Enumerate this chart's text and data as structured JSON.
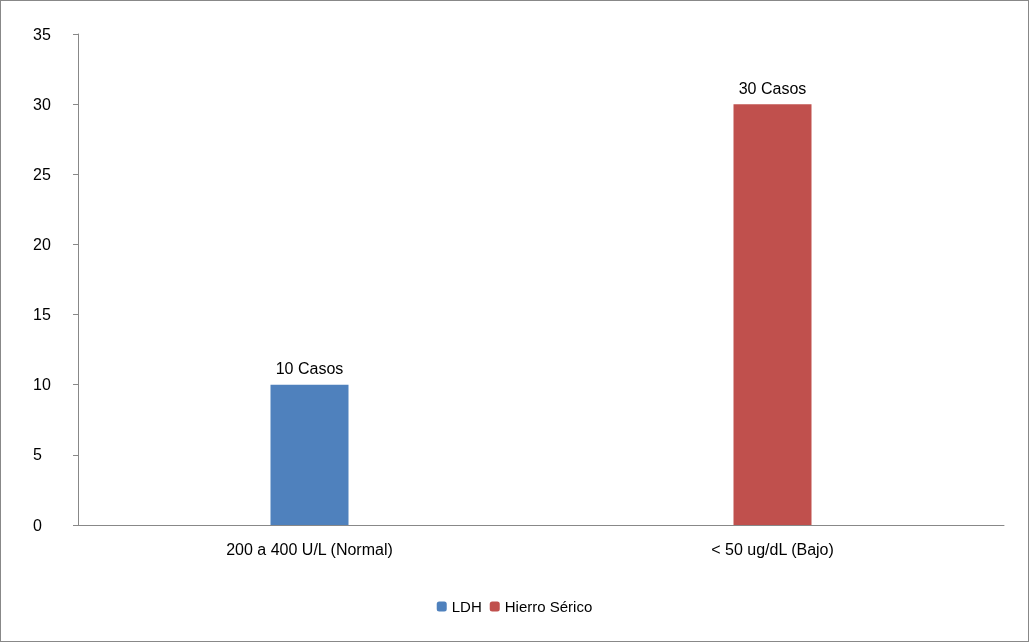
{
  "chart_data": {
    "type": "bar",
    "categories": [
      "200 a 400 U/L (Normal)",
      "< 50 ug/dL (Bajo)"
    ],
    "series": [
      {
        "name": "LDH",
        "color": "#4f81bd",
        "values": [
          10,
          null
        ],
        "value_labels": [
          "10 Casos",
          null
        ]
      },
      {
        "name": "Hierro Sérico",
        "color": "#c0504d",
        "values": [
          null,
          30
        ],
        "value_labels": [
          null,
          "30 Casos"
        ]
      }
    ],
    "ylim": [
      0,
      35
    ],
    "yticks": [
      0,
      5,
      10,
      15,
      20,
      25,
      30,
      35
    ],
    "grid": false,
    "legend": "bottom"
  }
}
